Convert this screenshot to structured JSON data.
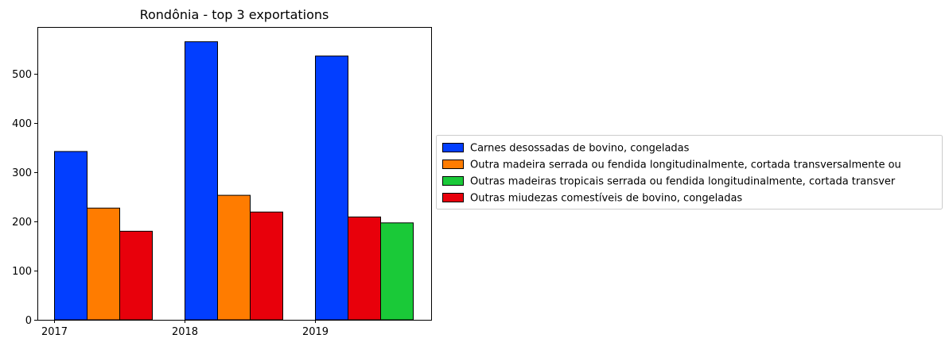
{
  "chart_data": {
    "type": "bar",
    "title": "Rondônia - top 3 exportations",
    "xlabel": "",
    "ylabel": "",
    "categories": [
      "2017",
      "2018",
      "2019"
    ],
    "ylim": [
      0,
      595
    ],
    "yticks": [
      0,
      100,
      200,
      300,
      400,
      500
    ],
    "grid": false,
    "legend_position": "right",
    "bars_per_group": 4,
    "series": [
      {
        "name": "Carnes desossadas de bovino, congeladas",
        "color": "#023eff",
        "points": [
          {
            "category": "2017",
            "slot": 0,
            "value": 342
          },
          {
            "category": "2018",
            "slot": 0,
            "value": 565
          },
          {
            "category": "2019",
            "slot": 0,
            "value": 536
          }
        ]
      },
      {
        "name": "Outra madeira serrada ou fendida longitudinalmente, cortada transversalmente ou",
        "color": "#ff7c00",
        "points": [
          {
            "category": "2017",
            "slot": 1,
            "value": 227
          },
          {
            "category": "2018",
            "slot": 1,
            "value": 253
          }
        ]
      },
      {
        "name": "Outras madeiras tropicais serrada ou fendida longitudinalmente, cortada transver",
        "color": "#1ac938",
        "points": [
          {
            "category": "2019",
            "slot": 2,
            "value": 197
          }
        ]
      },
      {
        "name": "Outras miudezas comestíveis de bovino, congeladas",
        "color": "#e8000b",
        "points": [
          {
            "category": "2017",
            "slot": 2,
            "value": 180
          },
          {
            "category": "2018",
            "slot": 2,
            "value": 219
          },
          {
            "category": "2019",
            "slot": 1,
            "value": 209
          }
        ]
      }
    ]
  }
}
